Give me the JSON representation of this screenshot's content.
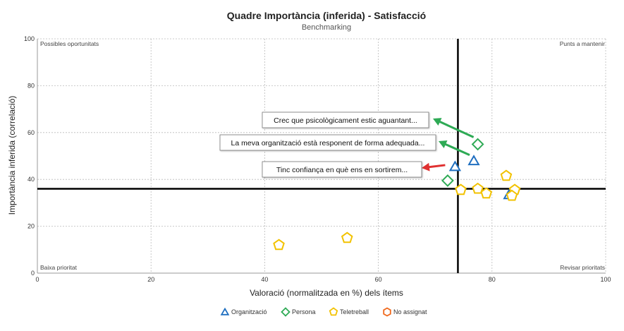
{
  "chart_data": {
    "type": "scatter",
    "title": "Quadre Importància (inferida) - Satisfacció",
    "subtitle": "Benchmarking",
    "xlabel": "Valoració (normalitzada en %) dels ítems",
    "ylabel": "Importància inferida (correlació)",
    "xlim": [
      0,
      100
    ],
    "ylim": [
      0,
      100
    ],
    "x_ticks": [
      "0",
      "20",
      "40",
      "60",
      "80",
      "100"
    ],
    "y_ticks": [
      "0",
      "20",
      "40",
      "60",
      "80",
      "100"
    ],
    "grid": true,
    "reference_lines": {
      "x": 74,
      "y": 36
    },
    "quadrant_labels": {
      "top_left": "Possibles oportunitats",
      "top_right": "Punts a mantenir",
      "bottom_left": "Baixa prioritat",
      "bottom_right": "Revisar prioritats"
    },
    "legend_position": "bottom",
    "series": [
      {
        "name": "Organització",
        "marker": "triangle",
        "color": "#1f6fc0",
        "points": [
          [
            73.5,
            45.5
          ],
          [
            76.8,
            48
          ],
          [
            83,
            33.5
          ]
        ]
      },
      {
        "name": "Persona",
        "marker": "diamond",
        "color": "#2eaa55",
        "points": [
          [
            77.5,
            55
          ],
          [
            72.2,
            39.5
          ]
        ]
      },
      {
        "name": "Teletreball",
        "marker": "pentagon",
        "color": "#f2c200",
        "points": [
          [
            74.5,
            35.5
          ],
          [
            77.5,
            36
          ],
          [
            79,
            34
          ],
          [
            82.5,
            41.5
          ],
          [
            84,
            35.5
          ],
          [
            83.5,
            33
          ],
          [
            42.5,
            12
          ],
          [
            54.5,
            15
          ]
        ]
      },
      {
        "name": "No assignat",
        "marker": "hexagon",
        "color": "#f06a1e",
        "points": []
      }
    ],
    "annotations": [
      {
        "text": "Crec que psicològicament estic aguantant...",
        "arrow_color": "#2eaa55",
        "target": [
          77.5,
          55
        ]
      },
      {
        "text": "La meva organització està responent de forma adequada...",
        "arrow_color": "#2eaa55",
        "target": [
          76.8,
          48
        ]
      },
      {
        "text": "Tinc confiança en què ens en sortirem...",
        "arrow_color": "#e03030",
        "target": [
          73.5,
          45.5
        ]
      }
    ]
  }
}
